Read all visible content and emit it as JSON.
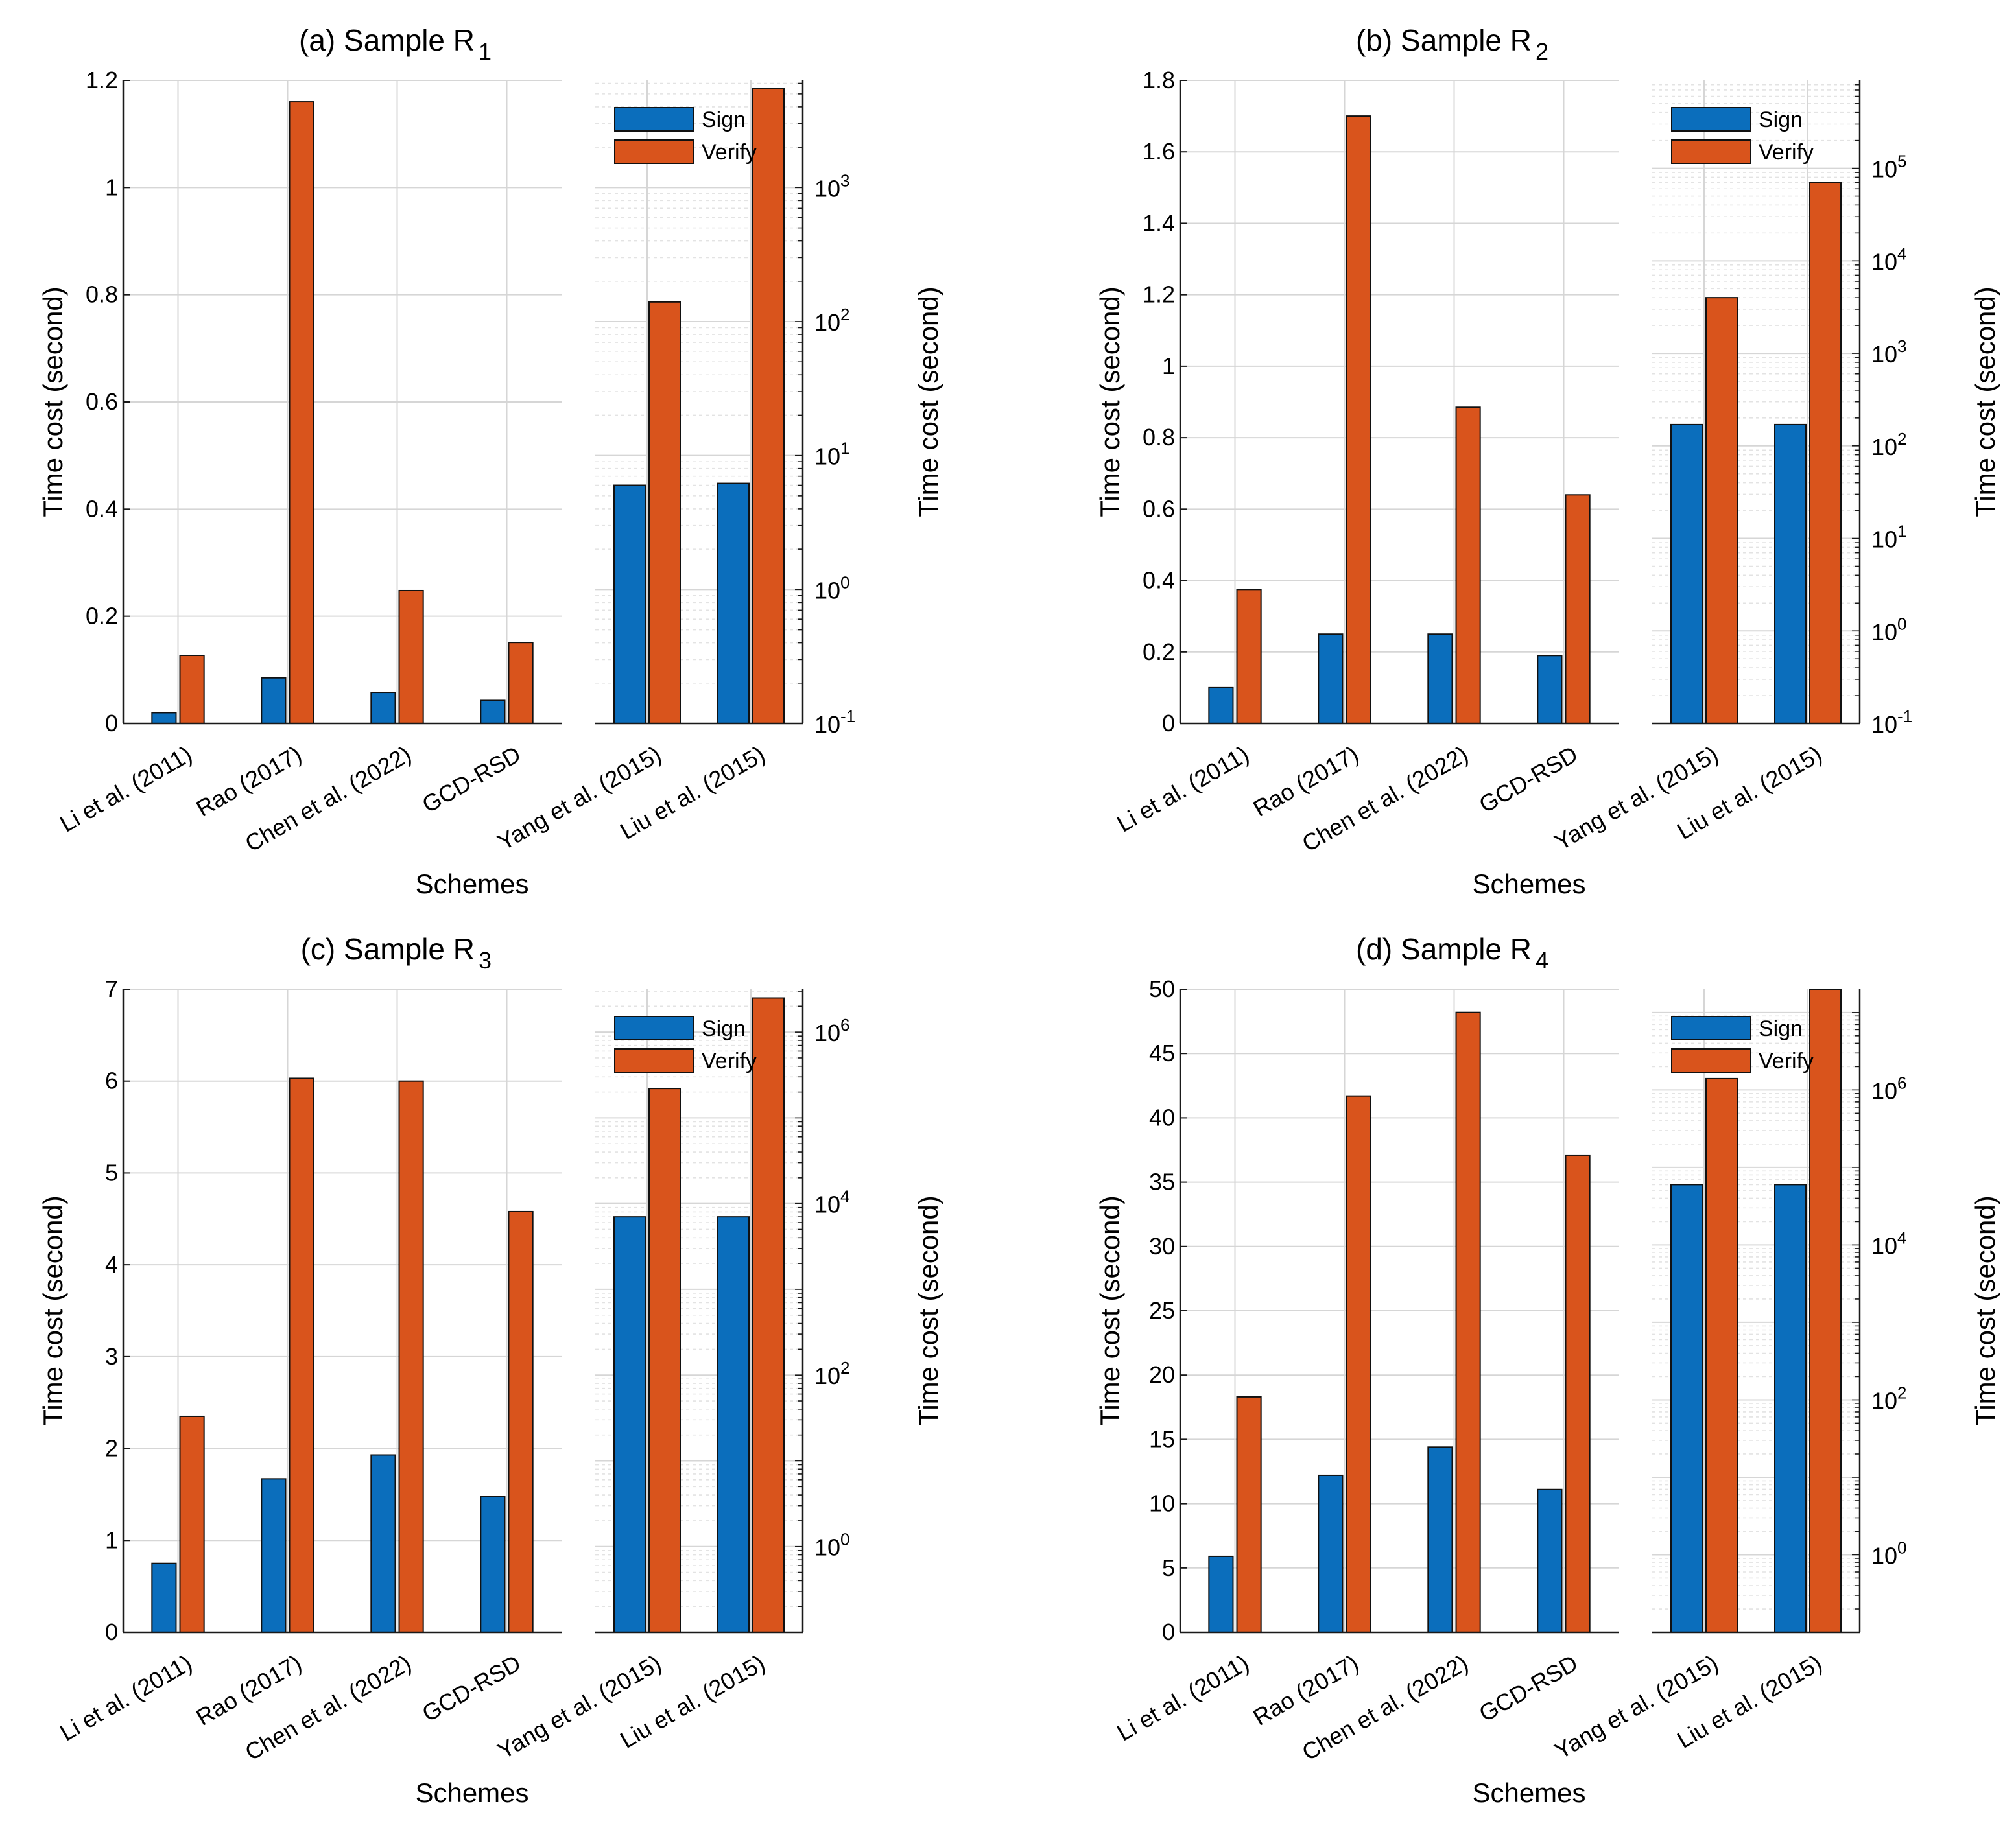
{
  "chart_data": [
    {
      "type": "bar",
      "title": "(a) Sample R",
      "title_sub": "1",
      "xlabel": "Schemes",
      "ylabel": "Time cost (second)",
      "linear": {
        "categories": [
          "Li et al. (2011)",
          "Rao (2017)",
          "Chen et al. (2022)",
          "GCD-RSD"
        ],
        "ylim": [
          0,
          1.2
        ],
        "yticks": [
          0,
          0.2,
          0.4,
          0.6,
          0.8,
          1,
          1.2
        ],
        "series": [
          {
            "name": "Sign",
            "values": [
              0.02,
              0.085,
              0.058,
              0.043
            ]
          },
          {
            "name": "Verify",
            "values": [
              0.127,
              1.16,
              0.248,
              0.151
            ]
          }
        ]
      },
      "log": {
        "categories": [
          "Yang et al. (2015)",
          "Liu et al. (2015)"
        ],
        "ylim_exp": [
          -1,
          3.8
        ],
        "tick_exps": [
          -1,
          0,
          1,
          2,
          3
        ],
        "series": [
          {
            "name": "Sign",
            "values": [
              6.0,
              6.2
            ]
          },
          {
            "name": "Verify",
            "values": [
              140,
              5500
            ]
          }
        ],
        "legend": [
          "Sign",
          "Verify"
        ]
      }
    },
    {
      "type": "bar",
      "title": "(b) Sample R",
      "title_sub": "2",
      "xlabel": "Schemes",
      "ylabel": "Time cost (second)",
      "linear": {
        "categories": [
          "Li et al. (2011)",
          "Rao (2017)",
          "Chen et al. (2022)",
          "GCD-RSD"
        ],
        "ylim": [
          0,
          1.8
        ],
        "yticks": [
          0,
          0.2,
          0.4,
          0.6,
          0.8,
          1,
          1.2,
          1.4,
          1.6,
          1.8
        ],
        "series": [
          {
            "name": "Sign",
            "values": [
              0.1,
              0.25,
              0.25,
              0.19
            ]
          },
          {
            "name": "Verify",
            "values": [
              0.375,
              1.7,
              0.885,
              0.64
            ]
          }
        ]
      },
      "log": {
        "categories": [
          "Yang et al. (2015)",
          "Liu et al. (2015)"
        ],
        "ylim_exp": [
          -1,
          5.95
        ],
        "tick_exps": [
          -1,
          0,
          1,
          2,
          3,
          4,
          5
        ],
        "series": [
          {
            "name": "Sign",
            "values": [
              170,
              170
            ]
          },
          {
            "name": "Verify",
            "values": [
              4000,
              70000
            ]
          }
        ],
        "legend": [
          "Sign",
          "Verify"
        ]
      }
    },
    {
      "type": "bar",
      "title": "(c) Sample R",
      "title_sub": "3",
      "xlabel": "Schemes",
      "ylabel": "Time cost (second)",
      "linear": {
        "categories": [
          "Li et al. (2011)",
          "Rao (2017)",
          "Chen et al. (2022)",
          "GCD-RSD"
        ],
        "ylim": [
          0,
          7
        ],
        "yticks": [
          0,
          1,
          2,
          3,
          4,
          5,
          6,
          7
        ],
        "series": [
          {
            "name": "Sign",
            "values": [
              0.75,
              1.67,
              1.93,
              1.48
            ]
          },
          {
            "name": "Verify",
            "values": [
              2.35,
              6.03,
              6.0,
              4.58
            ]
          }
        ]
      },
      "log": {
        "categories": [
          "Yang et al. (2015)",
          "Liu et al. (2015)"
        ],
        "ylim_exp": [
          -1,
          6.5
        ],
        "tick_exps": [
          0,
          2,
          4,
          6
        ],
        "series": [
          {
            "name": "Sign",
            "values": [
              7000,
              7000
            ]
          },
          {
            "name": "Verify",
            "values": [
              220000,
              2500000
            ]
          }
        ],
        "legend": [
          "Sign",
          "Verify"
        ]
      }
    },
    {
      "type": "bar",
      "title": "(d) Sample R",
      "title_sub": "4",
      "xlabel": "Schemes",
      "ylabel": "Time cost (second)",
      "linear": {
        "categories": [
          "Li et al. (2011)",
          "Rao (2017)",
          "Chen et al. (2022)",
          "GCD-RSD"
        ],
        "ylim": [
          0,
          50
        ],
        "yticks": [
          0,
          5,
          10,
          15,
          20,
          25,
          30,
          35,
          40,
          45,
          50
        ],
        "series": [
          {
            "name": "Sign",
            "values": [
              5.9,
              12.2,
              14.4,
              11.1
            ]
          },
          {
            "name": "Verify",
            "values": [
              18.3,
              41.7,
              48.2,
              37.1
            ]
          }
        ]
      },
      "log": {
        "categories": [
          "Yang et al. (2015)",
          "Liu et al. (2015)"
        ],
        "ylim_exp": [
          -1,
          7.3
        ],
        "tick_exps": [
          0,
          2,
          4,
          6
        ],
        "series": [
          {
            "name": "Sign",
            "values": [
              60000,
              60000
            ]
          },
          {
            "name": "Verify",
            "values": [
              1400000,
              20000000
            ]
          }
        ],
        "legend": [
          "Sign",
          "Verify"
        ]
      }
    }
  ],
  "colors": {
    "sign": "#0b6ebc",
    "verify": "#d9541c",
    "grid": "#d6d6d6",
    "minor_grid": "#e3e3e3",
    "axis": "#1a1a1a"
  }
}
